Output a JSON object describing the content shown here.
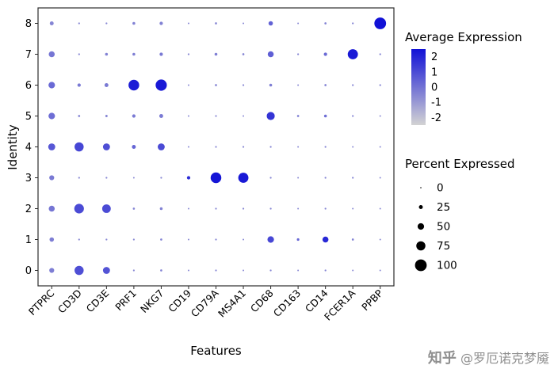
{
  "watermark": {
    "brand": "知乎",
    "handle": "@罗厄诺克梦魇"
  },
  "chart_data": {
    "type": "scatter",
    "subtype": "dot-plot",
    "title": "",
    "xlabel": "Features",
    "ylabel": "Identity",
    "grid": false,
    "features": [
      "PTPRC",
      "CD3D",
      "CD3E",
      "PRF1",
      "NKG7",
      "CD19",
      "CD79A",
      "MS4A1",
      "CD68",
      "CD163",
      "CD14",
      "FCER1A",
      "PPBP"
    ],
    "identities": [
      "8",
      "7",
      "6",
      "5",
      "4",
      "3",
      "2",
      "1",
      "0"
    ],
    "points_format": "[percent_expressed, average_expression]",
    "legend": {
      "color_title": "Average Expression",
      "color_ticks": [
        2,
        1,
        0,
        -1,
        -2
      ],
      "color_range": [
        -2.5,
        2.5
      ],
      "color_low": "#d3d3d3",
      "color_high": "#1111d6",
      "size_title": "Percent Expressed",
      "size_ticks": [
        0,
        25,
        50,
        75,
        100
      ]
    },
    "rows": [
      {
        "identity": "8",
        "points": [
          [
            25,
            -0.5
          ],
          [
            5,
            -0.6
          ],
          [
            5,
            -0.6
          ],
          [
            15,
            -0.4
          ],
          [
            20,
            -0.4
          ],
          [
            3,
            -0.6
          ],
          [
            8,
            -0.5
          ],
          [
            3,
            -0.6
          ],
          [
            30,
            0.4
          ],
          [
            3,
            -0.6
          ],
          [
            8,
            -0.4
          ],
          [
            5,
            -0.5
          ],
          [
            100,
            2.5
          ]
        ]
      },
      {
        "identity": "7",
        "points": [
          [
            45,
            -0.1
          ],
          [
            5,
            -0.6
          ],
          [
            15,
            -0.4
          ],
          [
            15,
            -0.3
          ],
          [
            20,
            -0.2
          ],
          [
            5,
            -0.6
          ],
          [
            15,
            -0.3
          ],
          [
            8,
            -0.5
          ],
          [
            45,
            0.5
          ],
          [
            5,
            -0.5
          ],
          [
            20,
            0.2
          ],
          [
            85,
            2.3
          ],
          [
            5,
            -0.5
          ]
        ]
      },
      {
        "identity": "6",
        "points": [
          [
            50,
            0.2
          ],
          [
            20,
            -0.2
          ],
          [
            25,
            -0.2
          ],
          [
            90,
            2.2
          ],
          [
            95,
            2.3
          ],
          [
            3,
            -0.6
          ],
          [
            8,
            -0.5
          ],
          [
            5,
            -0.6
          ],
          [
            15,
            -0.3
          ],
          [
            3,
            -0.6
          ],
          [
            8,
            -0.4
          ],
          [
            5,
            -0.5
          ],
          [
            5,
            -0.5
          ]
        ]
      },
      {
        "identity": "5",
        "points": [
          [
            50,
            0.1
          ],
          [
            8,
            -0.5
          ],
          [
            10,
            -0.5
          ],
          [
            20,
            -0.2
          ],
          [
            25,
            -0.2
          ],
          [
            3,
            -0.6
          ],
          [
            5,
            -0.6
          ],
          [
            3,
            -0.6
          ],
          [
            65,
            1.6
          ],
          [
            8,
            -0.3
          ],
          [
            15,
            0.1
          ],
          [
            5,
            -0.5
          ],
          [
            3,
            -0.6
          ]
        ]
      },
      {
        "identity": "4",
        "points": [
          [
            55,
            0.7
          ],
          [
            75,
            1.1
          ],
          [
            55,
            0.9
          ],
          [
            25,
            0.3
          ],
          [
            55,
            1.0
          ],
          [
            3,
            -0.6
          ],
          [
            5,
            -0.6
          ],
          [
            5,
            -0.6
          ],
          [
            5,
            -0.5
          ],
          [
            3,
            -0.6
          ],
          [
            5,
            -0.5
          ],
          [
            3,
            -0.6
          ],
          [
            3,
            -0.6
          ]
        ]
      },
      {
        "identity": "3",
        "points": [
          [
            35,
            -0.2
          ],
          [
            5,
            -0.6
          ],
          [
            5,
            -0.6
          ],
          [
            3,
            -0.6
          ],
          [
            5,
            -0.6
          ],
          [
            20,
            1.8
          ],
          [
            90,
            2.4
          ],
          [
            85,
            2.3
          ],
          [
            5,
            -0.5
          ],
          [
            3,
            -0.6
          ],
          [
            5,
            -0.5
          ],
          [
            5,
            -0.5
          ],
          [
            3,
            -0.6
          ]
        ]
      },
      {
        "identity": "2",
        "points": [
          [
            45,
            -0.1
          ],
          [
            80,
            1.0
          ],
          [
            70,
            1.0
          ],
          [
            8,
            -0.5
          ],
          [
            15,
            -0.4
          ],
          [
            3,
            -0.6
          ],
          [
            5,
            -0.6
          ],
          [
            5,
            -0.6
          ],
          [
            5,
            -0.5
          ],
          [
            3,
            -0.6
          ],
          [
            5,
            -0.5
          ],
          [
            3,
            -0.6
          ],
          [
            3,
            -0.6
          ]
        ]
      },
      {
        "identity": "1",
        "points": [
          [
            30,
            -0.3
          ],
          [
            5,
            -0.6
          ],
          [
            5,
            -0.6
          ],
          [
            5,
            -0.6
          ],
          [
            8,
            -0.5
          ],
          [
            3,
            -0.6
          ],
          [
            5,
            -0.6
          ],
          [
            3,
            -0.6
          ],
          [
            50,
            1.1
          ],
          [
            12,
            0.3
          ],
          [
            45,
            1.9
          ],
          [
            8,
            -0.4
          ],
          [
            3,
            -0.6
          ]
        ]
      },
      {
        "identity": "0",
        "points": [
          [
            35,
            -0.3
          ],
          [
            75,
            0.9
          ],
          [
            55,
            0.8
          ],
          [
            5,
            -0.6
          ],
          [
            8,
            -0.5
          ],
          [
            3,
            -0.6
          ],
          [
            5,
            -0.6
          ],
          [
            3,
            -0.6
          ],
          [
            5,
            -0.5
          ],
          [
            3,
            -0.6
          ],
          [
            5,
            -0.5
          ],
          [
            3,
            -0.6
          ],
          [
            3,
            -0.6
          ]
        ]
      }
    ]
  }
}
